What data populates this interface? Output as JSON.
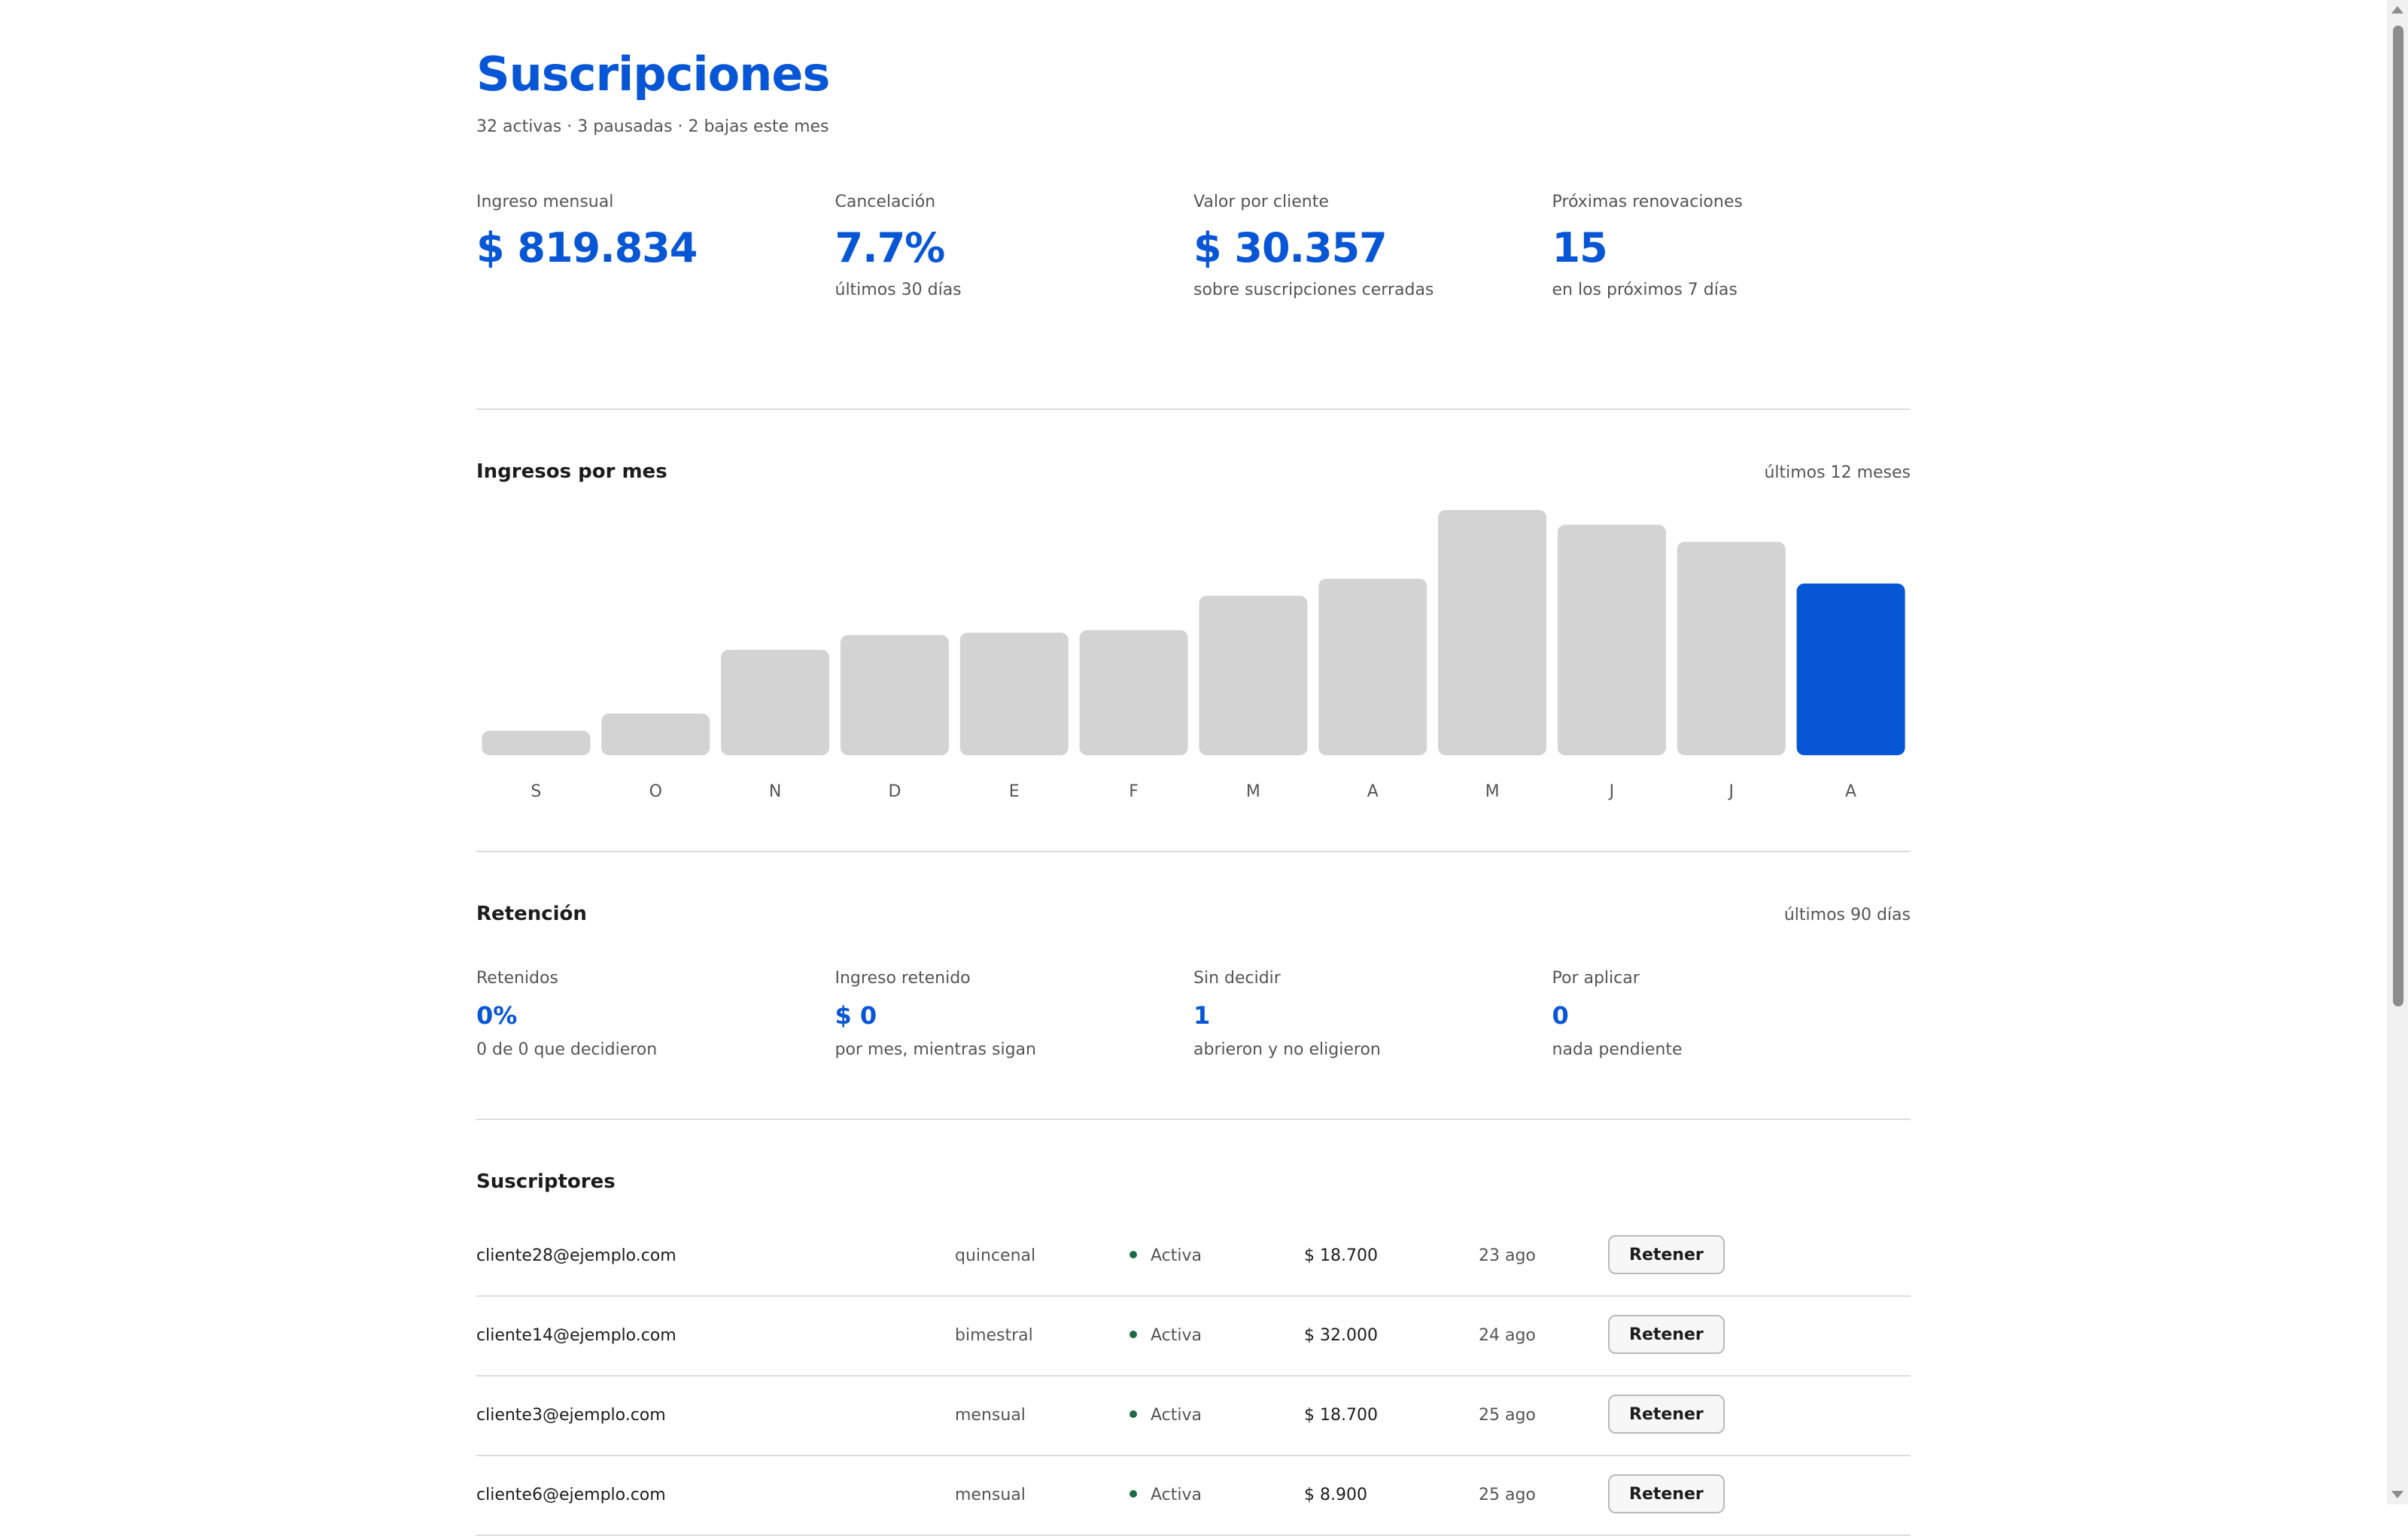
{
  "header": {
    "title": "Suscripciones",
    "subtitle": "32 activas · 3 pausadas · 2 bajas este mes"
  },
  "kpis": [
    {
      "label": "Ingreso mensual",
      "value": "$ 819.834",
      "note": ""
    },
    {
      "label": "Cancelación",
      "value": "7.7%",
      "note": "últimos 30 días"
    },
    {
      "label": "Valor por cliente",
      "value": "$ 30.357",
      "note": "sobre suscripciones cerradas"
    },
    {
      "label": "Próximas renovaciones",
      "value": "15",
      "note": "en los próximos 7 días"
    }
  ],
  "revenue": {
    "title": "Ingresos por mes",
    "meta": "últimos 12 meses"
  },
  "chart_data": {
    "type": "bar",
    "categories": [
      "S",
      "O",
      "N",
      "D",
      "E",
      "F",
      "M",
      "A",
      "M",
      "J",
      "J",
      "A"
    ],
    "values": [
      10,
      17,
      43,
      49,
      50,
      51,
      65,
      72,
      100,
      94,
      87,
      70
    ],
    "highlight_index": 11,
    "colors": {
      "default": "#d3d3d3",
      "highlight": "#0656d6"
    },
    "ylim": [
      0,
      100
    ],
    "grid": false
  },
  "retention": {
    "title": "Retención",
    "meta": "últimos 90 días",
    "items": [
      {
        "label": "Retenidos",
        "value": "0%",
        "note": "0 de 0 que decidieron"
      },
      {
        "label": "Ingreso retenido",
        "value": "$ 0",
        "note": "por mes, mientras sigan"
      },
      {
        "label": "Sin decidir",
        "value": "1",
        "note": "abrieron y no eligieron"
      },
      {
        "label": "Por aplicar",
        "value": "0",
        "note": "nada pendiente"
      }
    ]
  },
  "subscribers": {
    "title": "Suscriptores",
    "action_label": "Retener",
    "rows": [
      {
        "email": "cliente28@ejemplo.com",
        "plan": "quincenal",
        "status": "Activa",
        "amount": "$ 18.700",
        "date": "23 ago"
      },
      {
        "email": "cliente14@ejemplo.com",
        "plan": "bimestral",
        "status": "Activa",
        "amount": "$ 32.000",
        "date": "24 ago"
      },
      {
        "email": "cliente3@ejemplo.com",
        "plan": "mensual",
        "status": "Activa",
        "amount": "$ 18.700",
        "date": "25 ago"
      },
      {
        "email": "cliente6@ejemplo.com",
        "plan": "mensual",
        "status": "Activa",
        "amount": "$ 8.900",
        "date": "25 ago"
      }
    ]
  }
}
